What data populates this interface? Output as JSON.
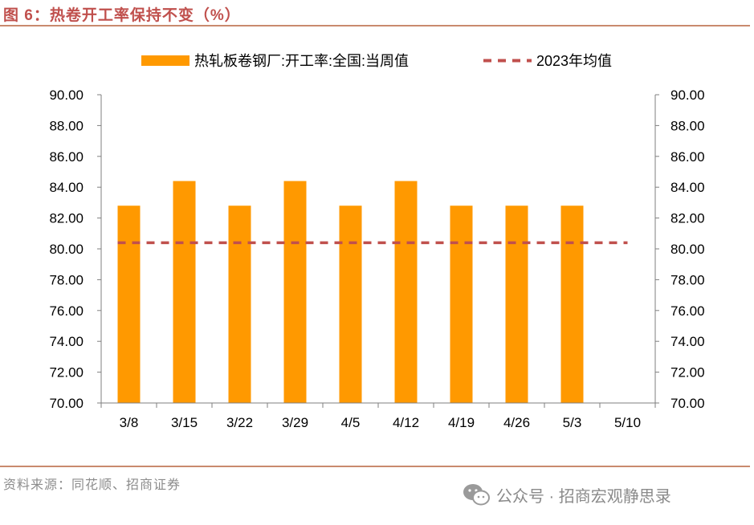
{
  "page": {
    "figure_title": "图 6：热卷开工率保持不变（%）",
    "source": "资料来源：同花顺、招商证券",
    "watermark_text": "公众号 · 招商宏观静思录",
    "watermark_icon": "wechat-icon"
  },
  "chart_data": {
    "type": "bar",
    "title": "热卷开工率保持不变（%）",
    "categories": [
      "3/8",
      "3/15",
      "3/22",
      "3/29",
      "4/5",
      "4/12",
      "4/19",
      "4/26",
      "5/3",
      "5/10"
    ],
    "series": [
      {
        "name": "热轧板卷钢厂:开工率:全国:当周值",
        "type": "bar",
        "color": "#ff9900",
        "values": [
          82.8,
          84.4,
          82.8,
          84.4,
          82.8,
          84.4,
          82.8,
          82.8,
          82.8,
          null
        ]
      },
      {
        "name": "2023年均值",
        "type": "dashed-line",
        "color": "#c0504d",
        "values": [
          80.4,
          80.4,
          80.4,
          80.4,
          80.4,
          80.4,
          80.4,
          80.4,
          80.4,
          80.4
        ]
      }
    ],
    "ylim": [
      70,
      90
    ],
    "yticks": [
      "70.00",
      "72.00",
      "74.00",
      "76.00",
      "78.00",
      "80.00",
      "82.00",
      "84.00",
      "86.00",
      "88.00",
      "90.00"
    ],
    "y_right_ticks": [
      "70.00",
      "72.00",
      "74.00",
      "76.00",
      "78.00",
      "80.00",
      "82.00",
      "84.00",
      "86.00",
      "88.00",
      "90.00"
    ],
    "xlabel": "",
    "ylabel": "",
    "legend_position": "top-center",
    "grid": false
  }
}
